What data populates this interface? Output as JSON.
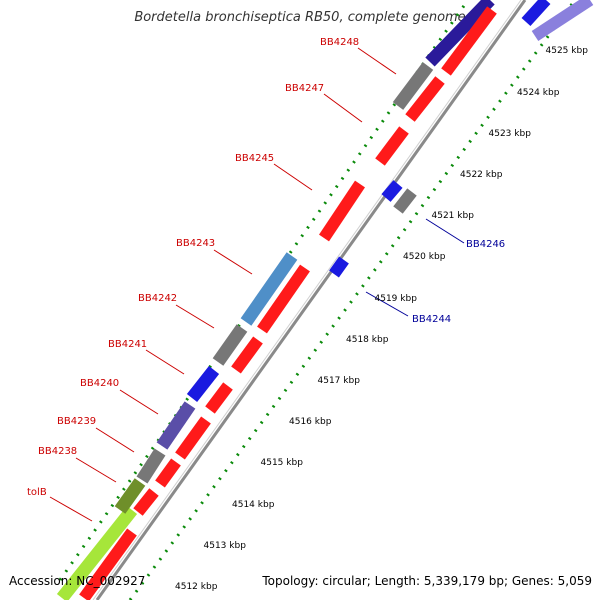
{
  "title": "Bordetella bronchiseptica RB50, complete genome",
  "accession": "Accession: NC_002927",
  "topology": "Topology: circular; Length: 5,339,179 bp; Genes: 5,059",
  "colors": {
    "forward_gene": "#ff0000",
    "reverse_gene": "#0000ff",
    "pseudo_gene": "#777777",
    "rna_gene": "#4682b4",
    "forward_label": "#cc0000",
    "reverse_label": "#000099",
    "tick_green": "#007a00",
    "backbone": "#888888"
  },
  "scale_ticks": [
    {
      "label": "4512 kbp"
    },
    {
      "label": "4513 kbp"
    },
    {
      "label": "4514 kbp"
    },
    {
      "label": "4515 kbp"
    },
    {
      "label": "4516 kbp"
    },
    {
      "label": "4517 kbp"
    },
    {
      "label": "4518 kbp"
    },
    {
      "label": "4519 kbp"
    },
    {
      "label": "4520 kbp"
    },
    {
      "label": "4521 kbp"
    },
    {
      "label": "4522 kbp"
    },
    {
      "label": "4523 kbp"
    },
    {
      "label": "4524 kbp"
    },
    {
      "label": "4525 kbp"
    }
  ],
  "gene_labels": [
    {
      "text": "tolB",
      "strand": "forward"
    },
    {
      "text": "BB4238",
      "strand": "forward"
    },
    {
      "text": "BB4239",
      "strand": "forward"
    },
    {
      "text": "BB4240",
      "strand": "forward"
    },
    {
      "text": "BB4241",
      "strand": "forward"
    },
    {
      "text": "BB4242",
      "strand": "forward"
    },
    {
      "text": "BB4243",
      "strand": "forward"
    },
    {
      "text": "BB4245",
      "strand": "forward"
    },
    {
      "text": "BB4247",
      "strand": "forward"
    },
    {
      "text": "BB4248",
      "strand": "forward"
    },
    {
      "text": "BB4244",
      "strand": "reverse"
    },
    {
      "text": "BB4246",
      "strand": "reverse"
    }
  ]
}
